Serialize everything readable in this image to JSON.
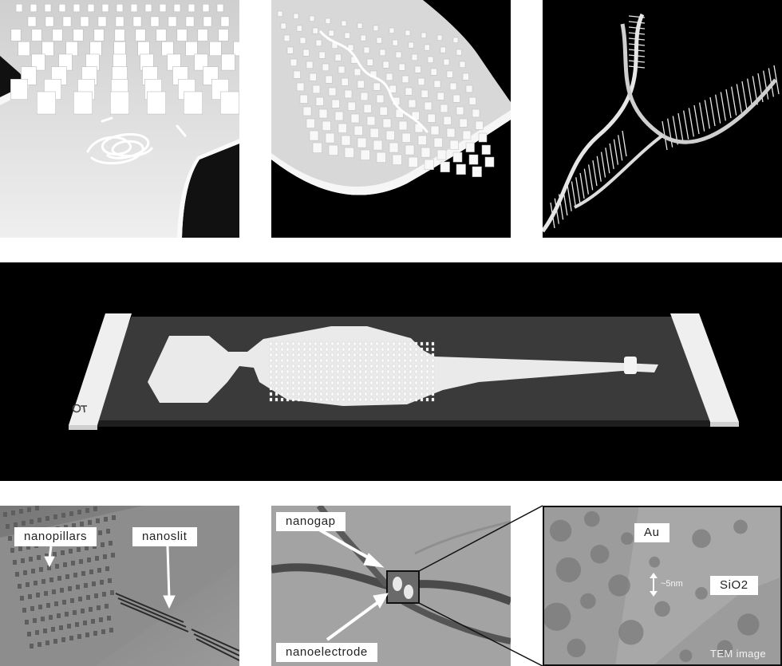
{
  "labels": {
    "nanopillars": "nanopillars",
    "nanoslit": "nanoslit",
    "nanogap": "nanogap",
    "nanoelectrode": "nanoelectrode",
    "au": "Au",
    "sio2": "SiO2",
    "scale": "~5nm",
    "tem": "TEM image"
  },
  "colors": {
    "background": "#ffffff",
    "render_black": "#000000",
    "render_white": "#f2f2f2",
    "sem_gray": "#8a8a8a",
    "tem_gray": "#9a9a9a"
  },
  "icons": {
    "chip_logo": "chip-logo-icon",
    "arrows": "white-arrow-icon"
  }
}
